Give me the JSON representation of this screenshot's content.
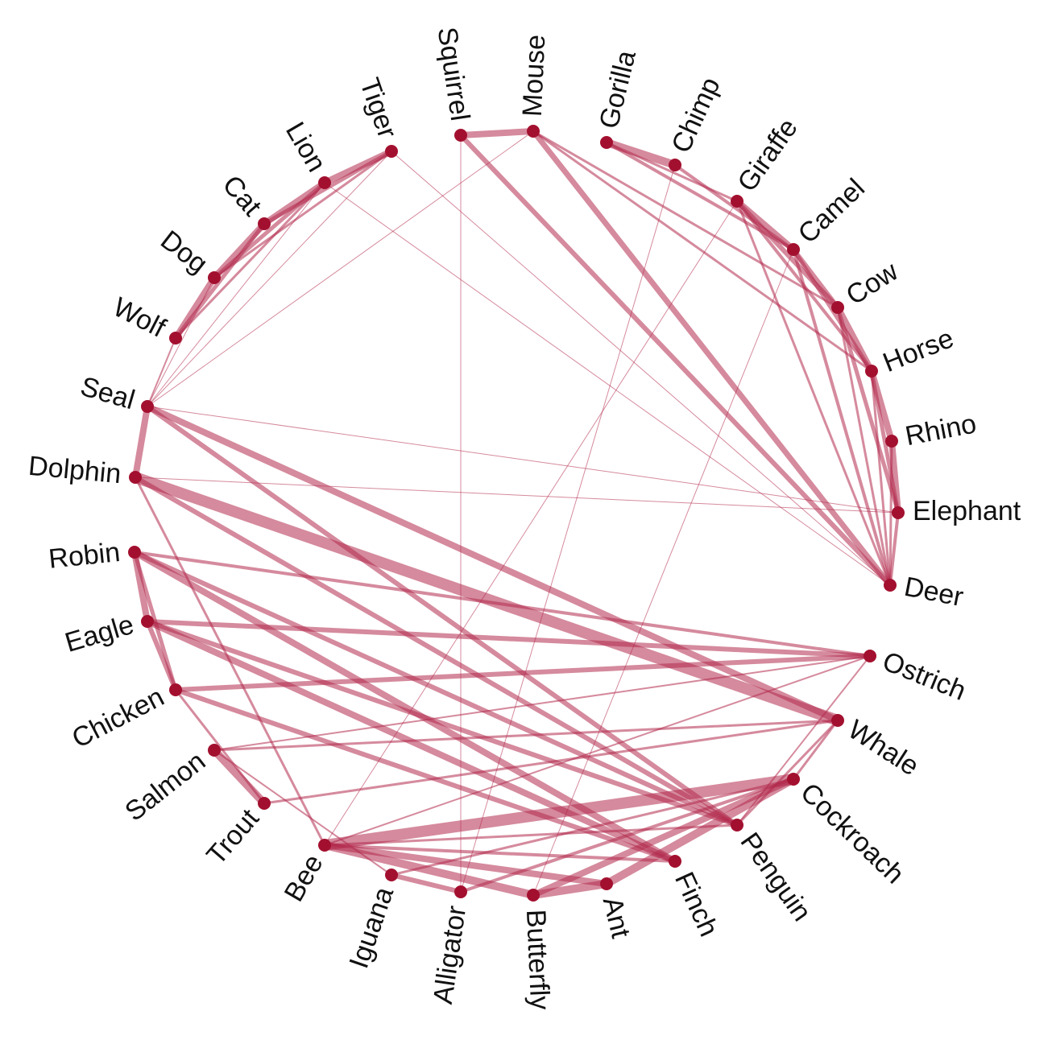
{
  "nodes": [
    "Mouse",
    "Gorilla",
    "Chimp",
    "Giraffe",
    "Camel",
    "Cow",
    "Horse",
    "Rhino",
    "Elephant",
    "Deer",
    "Ostrich",
    "Whale",
    "Cockroach",
    "Penguin",
    "Finch",
    "Ant",
    "Butterfly",
    "Alligator",
    "Iguana",
    "Bee",
    "Trout",
    "Salmon",
    "Chicken",
    "Eagle",
    "Robin",
    "Dolphin",
    "Seal",
    "Wolf",
    "Dog",
    "Cat",
    "Lion",
    "Tiger",
    "Squirrel"
  ],
  "edges": [
    {
      "source": "Squirrel",
      "target": "Mouse",
      "weight": 8
    },
    {
      "source": "Gorilla",
      "target": "Chimp",
      "weight": 10
    },
    {
      "source": "Giraffe",
      "target": "Camel",
      "weight": 8
    },
    {
      "source": "Camel",
      "target": "Cow",
      "weight": 6
    },
    {
      "source": "Cow",
      "target": "Horse",
      "weight": 8
    },
    {
      "source": "Horse",
      "target": "Rhino",
      "weight": 8
    },
    {
      "source": "Rhino",
      "target": "Elephant",
      "weight": 8
    },
    {
      "source": "Elephant",
      "target": "Deer",
      "weight": 4
    },
    {
      "source": "Giraffe",
      "target": "Cow",
      "weight": 6
    },
    {
      "source": "Camel",
      "target": "Horse",
      "weight": 5
    },
    {
      "source": "Cow",
      "target": "Elephant",
      "weight": 5
    },
    {
      "source": "Horse",
      "target": "Elephant",
      "weight": 5
    },
    {
      "source": "Giraffe",
      "target": "Horse",
      "weight": 4
    },
    {
      "source": "Camel",
      "target": "Deer",
      "weight": 4
    },
    {
      "source": "Cow",
      "target": "Deer",
      "weight": 3
    },
    {
      "source": "Horse",
      "target": "Deer",
      "weight": 3
    },
    {
      "source": "Giraffe",
      "target": "Deer",
      "weight": 3
    },
    {
      "source": "Rhino",
      "target": "Deer",
      "weight": 3
    },
    {
      "source": "Gorilla",
      "target": "Camel",
      "weight": 4
    },
    {
      "source": "Chimp",
      "target": "Camel",
      "weight": 4
    },
    {
      "source": "Gorilla",
      "target": "Giraffe",
      "weight": 3
    },
    {
      "source": "Mouse",
      "target": "Deer",
      "weight": 7
    },
    {
      "source": "Squirrel",
      "target": "Deer",
      "weight": 6
    },
    {
      "source": "Mouse",
      "target": "Cow",
      "weight": 3
    },
    {
      "source": "Mouse",
      "target": "Horse",
      "weight": 3
    },
    {
      "source": "Wolf",
      "target": "Dog",
      "weight": 8
    },
    {
      "source": "Dog",
      "target": "Cat",
      "weight": 8
    },
    {
      "source": "Cat",
      "target": "Lion",
      "weight": 8
    },
    {
      "source": "Lion",
      "target": "Tiger",
      "weight": 8
    },
    {
      "source": "Wolf",
      "target": "Cat",
      "weight": 5
    },
    {
      "source": "Dog",
      "target": "Lion",
      "weight": 5
    },
    {
      "source": "Cat",
      "target": "Tiger",
      "weight": 5
    },
    {
      "source": "Wolf",
      "target": "Lion",
      "weight": 3
    },
    {
      "source": "Dog",
      "target": "Tiger",
      "weight": 3
    },
    {
      "source": "Tiger",
      "target": "Deer",
      "weight": 1
    },
    {
      "source": "Lion",
      "target": "Deer",
      "weight": 1
    },
    {
      "source": "Seal",
      "target": "Tiger",
      "weight": 1
    },
    {
      "source": "Seal",
      "target": "Mouse",
      "weight": 1
    },
    {
      "source": "Seal",
      "target": "Elephant",
      "weight": 1
    },
    {
      "source": "Seal",
      "target": "Dolphin",
      "weight": 8
    },
    {
      "source": "Dolphin",
      "target": "Elephant",
      "weight": 1
    },
    {
      "source": "Seal",
      "target": "Whale",
      "weight": 8
    },
    {
      "source": "Dolphin",
      "target": "Whale",
      "weight": 14
    },
    {
      "source": "Seal",
      "target": "Penguin",
      "weight": 6
    },
    {
      "source": "Dolphin",
      "target": "Penguin",
      "weight": 6
    },
    {
      "source": "Robin",
      "target": "Eagle",
      "weight": 8
    },
    {
      "source": "Eagle",
      "target": "Chicken",
      "weight": 6
    },
    {
      "source": "Robin",
      "target": "Chicken",
      "weight": 5
    },
    {
      "source": "Robin",
      "target": "Ostrich",
      "weight": 4
    },
    {
      "source": "Eagle",
      "target": "Ostrich",
      "weight": 6
    },
    {
      "source": "Chicken",
      "target": "Ostrich",
      "weight": 6
    },
    {
      "source": "Robin",
      "target": "Finch",
      "weight": 8
    },
    {
      "source": "Eagle",
      "target": "Finch",
      "weight": 8
    },
    {
      "source": "Chicken",
      "target": "Finch",
      "weight": 6
    },
    {
      "source": "Robin",
      "target": "Penguin",
      "weight": 6
    },
    {
      "source": "Eagle",
      "target": "Penguin",
      "weight": 6
    },
    {
      "source": "Salmon",
      "target": "Trout",
      "weight": 10
    },
    {
      "source": "Salmon",
      "target": "Whale",
      "weight": 3
    },
    {
      "source": "Trout",
      "target": "Whale",
      "weight": 3
    },
    {
      "source": "Salmon",
      "target": "Ostrich",
      "weight": 2
    },
    {
      "source": "Bee",
      "target": "Cockroach",
      "weight": 14
    },
    {
      "source": "Bee",
      "target": "Butterfly",
      "weight": 10
    },
    {
      "source": "Bee",
      "target": "Ant",
      "weight": 8
    },
    {
      "source": "Butterfly",
      "target": "Ant",
      "weight": 10
    },
    {
      "source": "Ant",
      "target": "Cockroach",
      "weight": 10
    },
    {
      "source": "Butterfly",
      "target": "Cockroach",
      "weight": 8
    },
    {
      "source": "Iguana",
      "target": "Alligator",
      "weight": 6
    },
    {
      "source": "Alligator",
      "target": "Cockroach",
      "weight": 4
    },
    {
      "source": "Iguana",
      "target": "Cockroach",
      "weight": 3
    },
    {
      "source": "Alligator",
      "target": "Chimp",
      "weight": 1
    },
    {
      "source": "Squirrel",
      "target": "Alligator",
      "weight": 1
    },
    {
      "source": "Butterfly",
      "target": "Camel",
      "weight": 1
    },
    {
      "source": "Bee",
      "target": "Giraffe",
      "weight": 1
    },
    {
      "source": "Bee",
      "target": "Ostrich",
      "weight": 2
    },
    {
      "source": "Iguana",
      "target": "Salmon",
      "weight": 2
    },
    {
      "source": "Dolphin",
      "target": "Bee",
      "weight": 3
    },
    {
      "source": "Chicken",
      "target": "Trout",
      "weight": 3
    },
    {
      "source": "Bee",
      "target": "Penguin",
      "weight": 3
    },
    {
      "source": "Bee",
      "target": "Finch",
      "weight": 4
    },
    {
      "source": "Seal",
      "target": "Wolf",
      "weight": 2
    },
    {
      "source": "Seal",
      "target": "Dog",
      "weight": 1
    },
    {
      "source": "Seal",
      "target": "Lion",
      "weight": 1
    },
    {
      "source": "Whale",
      "target": "Penguin",
      "weight": 3
    },
    {
      "source": "Ostrich",
      "target": "Penguin",
      "weight": 2
    },
    {
      "source": "Whale",
      "target": "Cockroach",
      "weight": 3
    }
  ]
}
